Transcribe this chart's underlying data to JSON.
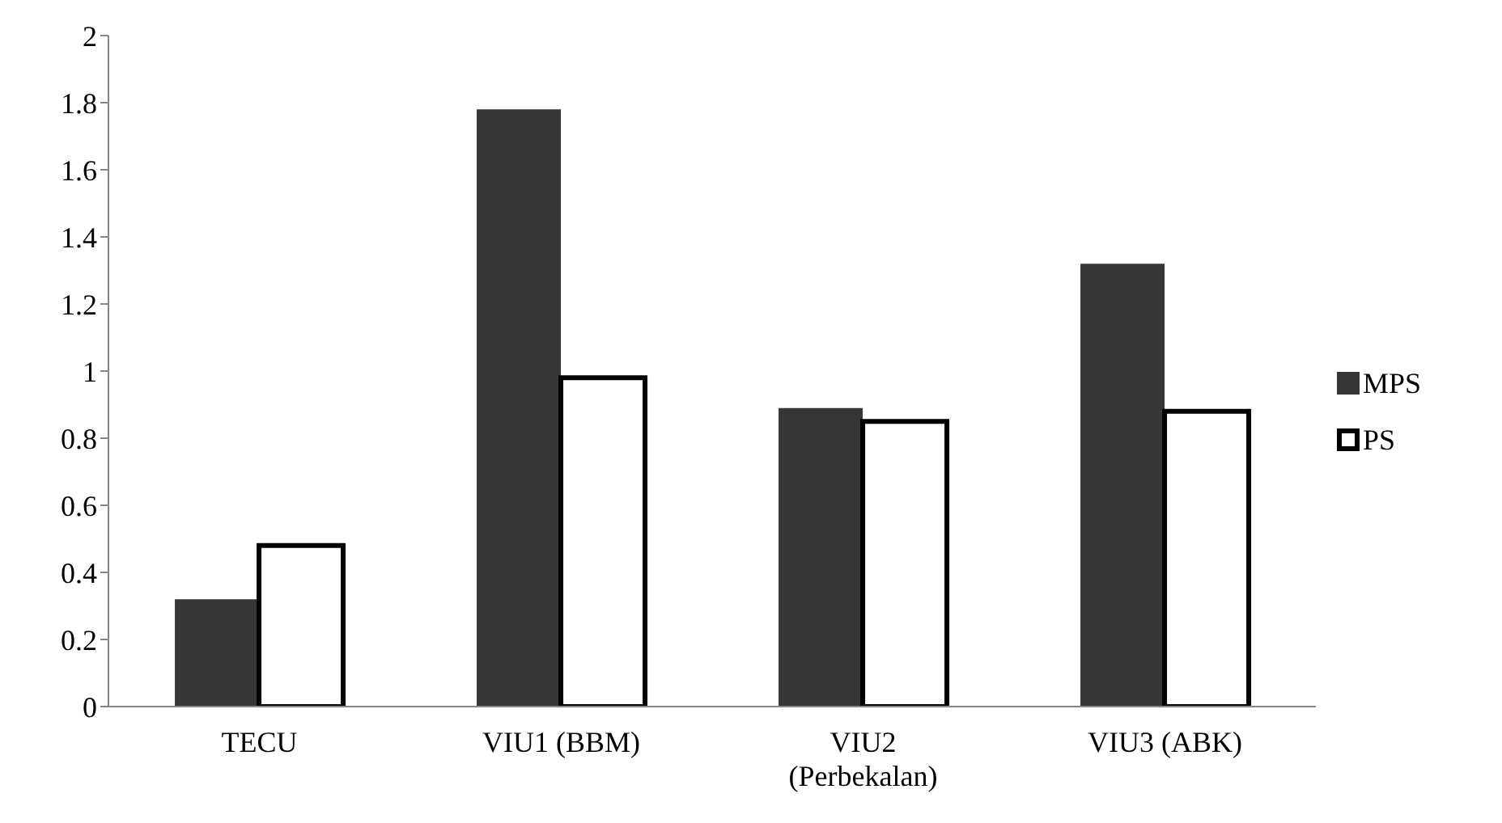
{
  "chart_data": {
    "type": "bar",
    "categories": [
      "TECU",
      "VIU1 (BBM)",
      "VIU2 (Perbekalan)",
      "VIU3 (ABK)"
    ],
    "series": [
      {
        "name": "MPS",
        "color": "#363636",
        "values": [
          0.32,
          1.78,
          0.89,
          1.32
        ]
      },
      {
        "name": "PS",
        "color": "#ffffff",
        "values": [
          0.48,
          0.98,
          0.85,
          0.88
        ]
      }
    ],
    "ylim": [
      0,
      2
    ],
    "yticks": [
      0,
      0.2,
      0.4,
      0.6,
      0.8,
      1,
      1.2,
      1.4,
      1.6,
      1.8,
      2
    ],
    "grid": false,
    "legend": "right"
  }
}
